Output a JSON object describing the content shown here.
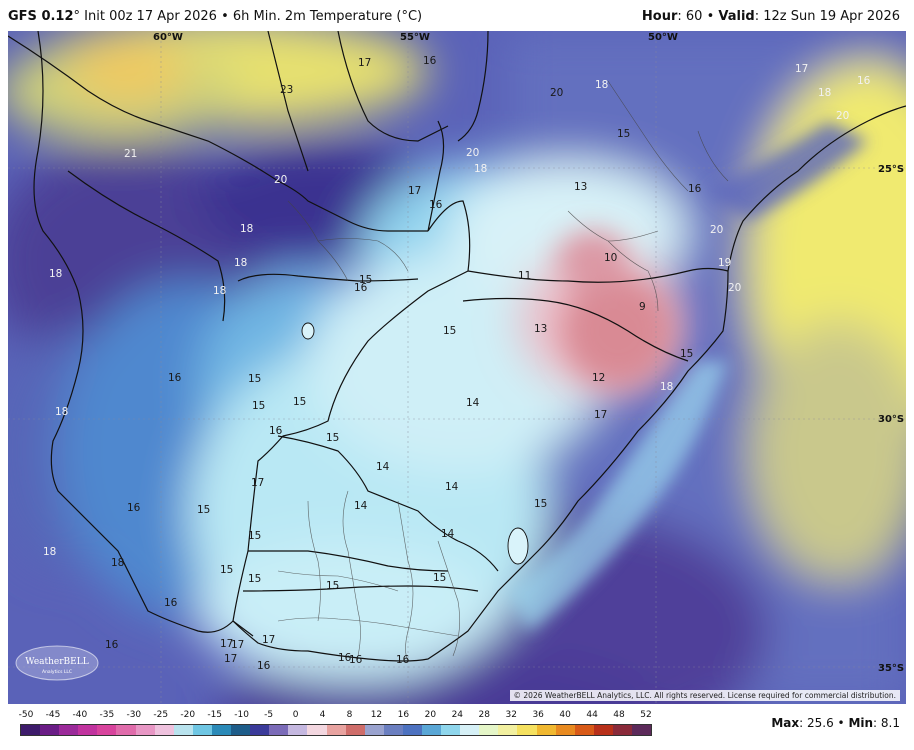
{
  "header": {
    "model": "GFS 0.12",
    "degree": "°",
    "init": " Init 00z 17 Apr 2026 • 6h Min. 2m Temperature (°C)",
    "hour_label": "Hour",
    "hour_value": ": 60 • ",
    "valid_label": "Valid",
    "valid_value": ": 12z Sun 19 Apr 2026"
  },
  "map": {
    "longitude_labels": [
      "60°W",
      "55°W",
      "50°W"
    ],
    "latitude_labels": [
      "25°S",
      "30°S",
      "35°S"
    ],
    "temperature_labels": [
      {
        "text": "23"
      },
      {
        "text": "21"
      },
      {
        "text": "20"
      },
      {
        "text": "20"
      },
      {
        "text": "18"
      },
      {
        "text": "20"
      },
      {
        "text": "18"
      },
      {
        "text": "17"
      },
      {
        "text": "17"
      },
      {
        "text": "16"
      },
      {
        "text": "20"
      },
      {
        "text": "18"
      },
      {
        "text": "15"
      },
      {
        "text": "13"
      },
      {
        "text": "16"
      },
      {
        "text": "18"
      },
      {
        "text": "18"
      },
      {
        "text": "18"
      },
      {
        "text": "16"
      },
      {
        "text": "15"
      },
      {
        "text": "10"
      },
      {
        "text": "11"
      },
      {
        "text": "20"
      },
      {
        "text": "19"
      },
      {
        "text": "15"
      },
      {
        "text": "13"
      },
      {
        "text": "9"
      },
      {
        "text": "15"
      },
      {
        "text": "16"
      },
      {
        "text": "16"
      },
      {
        "text": "15"
      },
      {
        "text": "12"
      },
      {
        "text": "18"
      },
      {
        "text": "15"
      },
      {
        "text": "15"
      },
      {
        "text": "14"
      },
      {
        "text": "18"
      },
      {
        "text": "17"
      },
      {
        "text": "16"
      },
      {
        "text": "15"
      },
      {
        "text": "14"
      },
      {
        "text": "17"
      },
      {
        "text": "14"
      },
      {
        "text": "16"
      },
      {
        "text": "15"
      },
      {
        "text": "14"
      },
      {
        "text": "15"
      },
      {
        "text": "15"
      },
      {
        "text": "14"
      },
      {
        "text": "18"
      },
      {
        "text": "15"
      },
      {
        "text": "18"
      },
      {
        "text": "15"
      },
      {
        "text": "15"
      },
      {
        "text": "15"
      },
      {
        "text": "16"
      },
      {
        "text": "17"
      },
      {
        "text": "16"
      },
      {
        "text": "17"
      },
      {
        "text": "17"
      },
      {
        "text": "16"
      },
      {
        "text": "16"
      },
      {
        "text": "16"
      },
      {
        "text": "16"
      },
      {
        "text": "17"
      },
      {
        "text": "16"
      },
      {
        "text": "18"
      },
      {
        "text": "17"
      },
      {
        "text": "20"
      }
    ],
    "copyright": "© 2026 WeatherBELL Analytics, LLC. All rights reserved. License required for commercial distribution.",
    "logo_text": "WeatherBELL",
    "logo_subtext": "Analytics LLC"
  },
  "colorbar": {
    "ticks": [
      "-50",
      "-45",
      "-40",
      "-35",
      "-30",
      "-25",
      "-20",
      "-15",
      "-10",
      "-5",
      "0",
      "4",
      "8",
      "12",
      "16",
      "20",
      "24",
      "28",
      "32",
      "36",
      "40",
      "44",
      "48",
      "52"
    ],
    "colors": [
      "#3d1b6b",
      "#6a1d86",
      "#9b2a9a",
      "#c1339f",
      "#d8449d",
      "#e06cab",
      "#e897c5",
      "#efc2de",
      "#b9e3ee",
      "#6fc6e3",
      "#2b8ab8",
      "#1e5d8a",
      "#3b3b9a",
      "#7b6bb8",
      "#c5b8e0",
      "#f3d7e0",
      "#e8a3a0",
      "#cf6d6a",
      "#9aa3cf",
      "#6b7fc0",
      "#4d72c0",
      "#5aa7d6",
      "#8fd6ec",
      "#d6f0f6",
      "#e5f6c8",
      "#f2f0a0",
      "#f5e160",
      "#f0b830",
      "#e88a20",
      "#d85a18",
      "#b8301a",
      "#8a2a3a",
      "#5c2a5a"
    ]
  },
  "stats": {
    "max_label": "Max",
    "max_value": ": 25.6 • ",
    "min_label": "Min",
    "min_value": ": 8.1"
  }
}
